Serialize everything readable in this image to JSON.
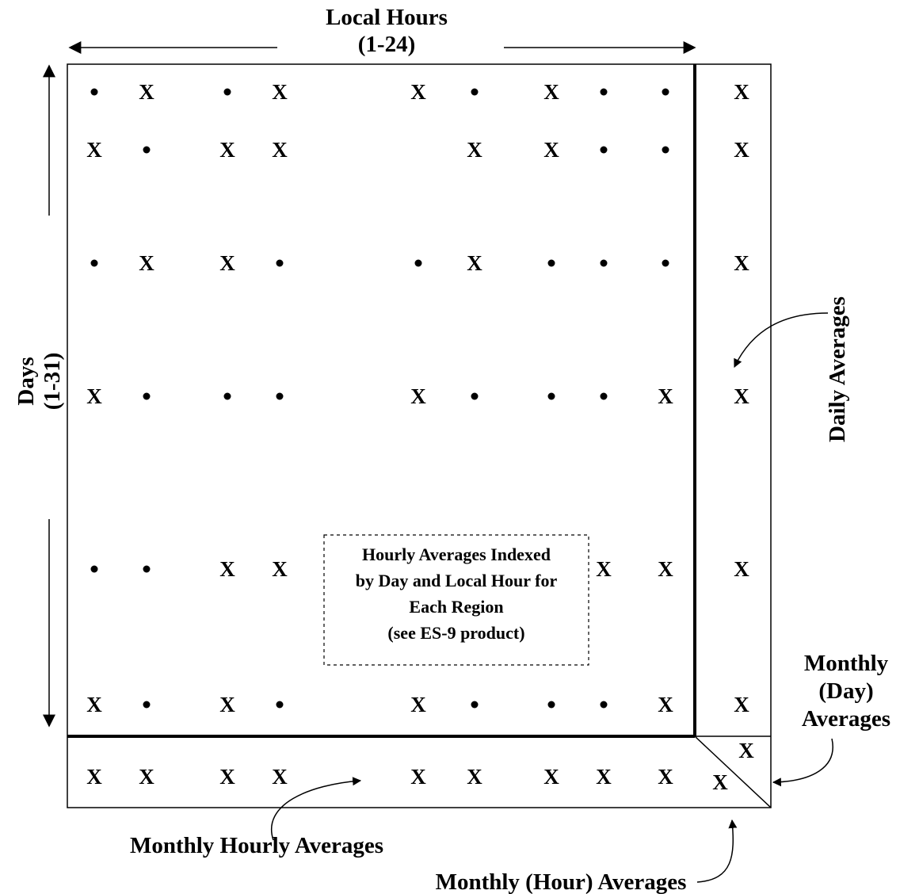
{
  "labels": {
    "local_hours": "Local Hours",
    "local_hours_range": "(1-24)",
    "days": "Days",
    "days_range": "(1-31)",
    "daily_averages": "Daily Averages",
    "monthly_day_line1": "Monthly",
    "monthly_day_line2": "(Day)",
    "monthly_day_line3": "Averages",
    "monthly_hourly_averages": "Monthly Hourly Averages",
    "monthly_hour_averages": "Monthly (Hour) Averages"
  },
  "note": {
    "line1": "Hourly Averages Indexed",
    "line2": "by Day and Local Hour for",
    "line3": "Each Region",
    "line4": "(see ES-9 product)"
  },
  "markers": {
    "x_symbol": "X",
    "grid": [
      [
        "dot",
        "X",
        "dot",
        "X",
        "X",
        "dot",
        "X",
        "dot",
        "dot"
      ],
      [
        "X",
        "dot",
        "X",
        "X",
        "",
        "X",
        "X",
        "dot",
        "dot"
      ],
      [
        "dot",
        "X",
        "X",
        "dot",
        "dot",
        "X",
        "dot",
        "dot",
        "dot"
      ],
      [
        "X",
        "dot",
        "dot",
        "dot",
        "X",
        "dot",
        "dot",
        "dot",
        "X"
      ],
      [
        "dot",
        "dot",
        "X",
        "X",
        "",
        "",
        "",
        "X",
        "X"
      ],
      [
        "X",
        "dot",
        "X",
        "dot",
        "X",
        "dot",
        "dot",
        "dot",
        "X"
      ]
    ],
    "daily_column": [
      "X",
      "X",
      "X",
      "X",
      "X",
      "X"
    ],
    "monthly_hourly_row": [
      "X",
      "X",
      "X",
      "X",
      "X",
      "X",
      "X",
      "X",
      "X"
    ],
    "corner_upper": "X",
    "corner_lower": "X"
  }
}
